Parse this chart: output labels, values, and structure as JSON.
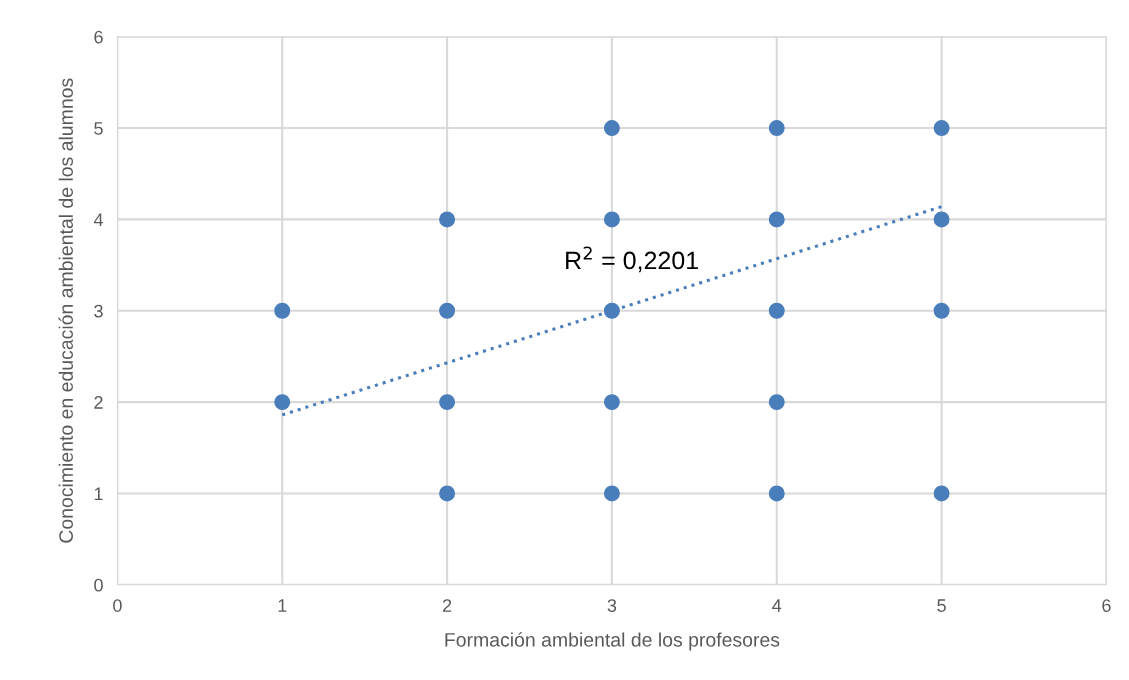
{
  "chart_data": {
    "type": "scatter",
    "xlabel": "Formación ambiental de los profesores",
    "ylabel": "Conocimiento en educación ambiental de los alumnos",
    "series": [
      {
        "color": "#4a7ebb",
        "marker": "circle",
        "x": [
          1,
          1,
          2,
          2,
          2,
          2,
          3,
          3,
          3,
          3,
          3,
          4,
          4,
          4,
          4,
          4,
          5,
          5,
          5,
          5
        ],
        "values": [
          2,
          3,
          1,
          2,
          3,
          4,
          1,
          2,
          3,
          4,
          5,
          1,
          2,
          3,
          4,
          5,
          1,
          3,
          4,
          5
        ]
      },
      {
        "type": "line",
        "color": "#4a7ebb",
        "line_style": "dotted",
        "x": [
          1,
          5
        ],
        "values": [
          1.86,
          4.14
        ]
      }
    ],
    "annotations": [
      "R$^{2}$ = 0,2201"
    ],
    "xlim": [
      0,
      6
    ],
    "ylim": [
      0,
      6
    ],
    "xticks": [
      0,
      1,
      2,
      3,
      4,
      5,
      6
    ],
    "yticks": [
      0,
      1,
      2,
      3,
      4,
      5,
      6
    ],
    "grid": true
  }
}
